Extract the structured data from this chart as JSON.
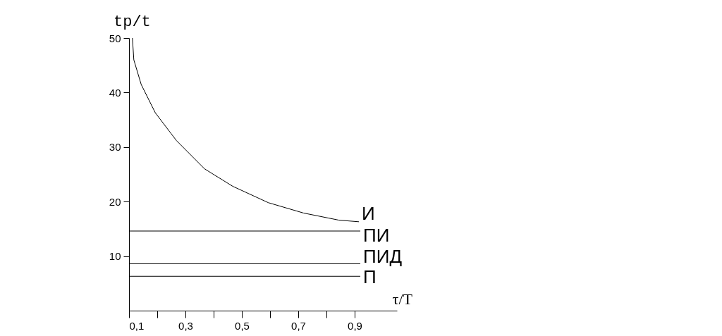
{
  "chart_data": {
    "type": "line",
    "xlabel": "τ/T",
    "ylabel": "tр/t",
    "xlim": [
      0.1,
      1.05
    ],
    "ylim": [
      0,
      50
    ],
    "xticks": [
      {
        "value": 0.1,
        "label": "0,1"
      },
      {
        "value": 0.2,
        "label": null
      },
      {
        "value": 0.3,
        "label": "0,3"
      },
      {
        "value": 0.4,
        "label": null
      },
      {
        "value": 0.5,
        "label": "0,5"
      },
      {
        "value": 0.6,
        "label": null
      },
      {
        "value": 0.7,
        "label": "0,7"
      },
      {
        "value": 0.8,
        "label": null
      },
      {
        "value": 0.9,
        "label": "0,9"
      }
    ],
    "yticks": [
      10,
      20,
      30,
      40,
      50
    ],
    "grid": false,
    "marker": "none",
    "line_style": "solid",
    "series": [
      {
        "name": "И",
        "color": "#000000",
        "x": [
          0.112,
          0.117,
          0.143,
          0.193,
          0.268,
          0.368,
          0.468,
          0.594,
          0.719,
          0.844,
          0.915
        ],
        "values": [
          50,
          46,
          41.5,
          36.3,
          31.2,
          26,
          22.8,
          19.8,
          17.9,
          16.6,
          16.3
        ]
      },
      {
        "name": "ПИ",
        "color": "#000000",
        "x": [
          0.1,
          0.92
        ],
        "values": [
          14.6,
          14.6
        ]
      },
      {
        "name": "ПИД",
        "color": "#000000",
        "x": [
          0.1,
          0.92
        ],
        "values": [
          8.6,
          8.6
        ]
      },
      {
        "name": "П",
        "color": "#000000",
        "x": [
          0.1,
          0.92
        ],
        "values": [
          6.3,
          6.3
        ]
      }
    ]
  }
}
